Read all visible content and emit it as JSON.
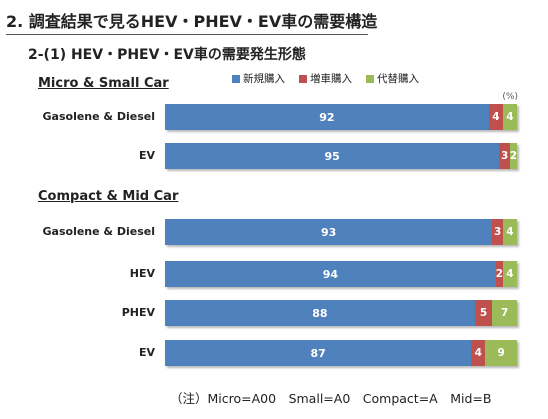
{
  "header": {
    "title": "2. 調査結果で見るHEV・PHEV・EV車の需要構造",
    "subtitle": "2-(1) HEV・PHEV・EV車の需要発生形態"
  },
  "chart_data": {
    "type": "bar",
    "orientation": "horizontal",
    "stacked": true,
    "unit": "(%)",
    "xlim": [
      0,
      100
    ],
    "legend_position": "top",
    "legend": [
      "新規購入",
      "増車購入",
      "代替購入"
    ],
    "colors": {
      "新規購入": "#4f81bd",
      "増車購入": "#c0504d",
      "代替購入": "#9bbb59"
    },
    "groups": [
      {
        "name": "Micro & Small Car",
        "rows": [
          {
            "label": "Gasolene & Diesel",
            "values": [
              92,
              4,
              4
            ]
          },
          {
            "label": "EV",
            "values": [
              95,
              3,
              2
            ]
          }
        ]
      },
      {
        "name": "Compact & Mid Car",
        "rows": [
          {
            "label": "Gasolene & Diesel",
            "values": [
              93,
              3,
              4
            ]
          },
          {
            "label": "HEV",
            "values": [
              94,
              2,
              4
            ]
          },
          {
            "label": "PHEV",
            "values": [
              88,
              5,
              7
            ]
          },
          {
            "label": "EV",
            "values": [
              87,
              4,
              9
            ]
          }
        ]
      }
    ]
  },
  "footnote": "（注）Micro=A00　Small=A0　Compact=A　Mid=B"
}
